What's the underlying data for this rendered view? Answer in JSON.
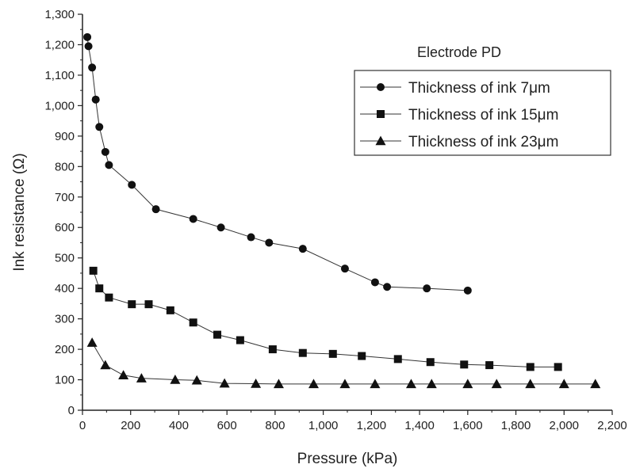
{
  "chart_data": {
    "type": "line",
    "title": "",
    "xlabel": "Pressure (kPa)",
    "ylabel": "Ink resistance (Ω)",
    "xlim": [
      0,
      2200
    ],
    "ylim": [
      0,
      1300
    ],
    "x_ticks": [
      "0",
      "200",
      "400",
      "600",
      "800",
      "1,000",
      "1,200",
      "1,400",
      "1,600",
      "1,800",
      "2,000",
      "2,200"
    ],
    "y_ticks": [
      "0",
      "100",
      "200",
      "300",
      "400",
      "500",
      "600",
      "700",
      "800",
      "900",
      "1,000",
      "1,100",
      "1,200",
      "1,300"
    ],
    "grid": false,
    "legend_title": "Electrode PD",
    "legend_position": "top-right",
    "series": [
      {
        "name": "Thickness of ink 7μm",
        "marker": "circle",
        "points": [
          [
            20,
            1225
          ],
          [
            25,
            1195
          ],
          [
            40,
            1125
          ],
          [
            55,
            1020
          ],
          [
            70,
            930
          ],
          [
            95,
            848
          ],
          [
            110,
            805
          ],
          [
            205,
            740
          ],
          [
            305,
            660
          ],
          [
            460,
            628
          ],
          [
            575,
            600
          ],
          [
            700,
            568
          ],
          [
            775,
            550
          ],
          [
            915,
            530
          ],
          [
            1090,
            465
          ],
          [
            1215,
            420
          ],
          [
            1265,
            405
          ],
          [
            1430,
            400
          ],
          [
            1600,
            393
          ]
        ]
      },
      {
        "name": "Thickness of ink 15μm",
        "marker": "square",
        "points": [
          [
            45,
            458
          ],
          [
            70,
            400
          ],
          [
            110,
            370
          ],
          [
            205,
            348
          ],
          [
            275,
            348
          ],
          [
            365,
            328
          ],
          [
            460,
            288
          ],
          [
            560,
            248
          ],
          [
            655,
            230
          ],
          [
            790,
            200
          ],
          [
            915,
            188
          ],
          [
            1040,
            185
          ],
          [
            1160,
            178
          ],
          [
            1310,
            168
          ],
          [
            1445,
            158
          ],
          [
            1585,
            150
          ],
          [
            1690,
            148
          ],
          [
            1860,
            142
          ],
          [
            1975,
            142
          ]
        ]
      },
      {
        "name": "Thickness of ink 23μm",
        "marker": "triangle",
        "points": [
          [
            40,
            222
          ],
          [
            95,
            148
          ],
          [
            170,
            115
          ],
          [
            245,
            105
          ],
          [
            385,
            100
          ],
          [
            475,
            98
          ],
          [
            590,
            88
          ],
          [
            720,
            87
          ],
          [
            815,
            86
          ],
          [
            960,
            86
          ],
          [
            1090,
            86
          ],
          [
            1215,
            86
          ],
          [
            1365,
            86
          ],
          [
            1450,
            86
          ],
          [
            1600,
            86
          ],
          [
            1720,
            86
          ],
          [
            1860,
            86
          ],
          [
            2000,
            86
          ],
          [
            2130,
            86
          ]
        ]
      }
    ]
  }
}
